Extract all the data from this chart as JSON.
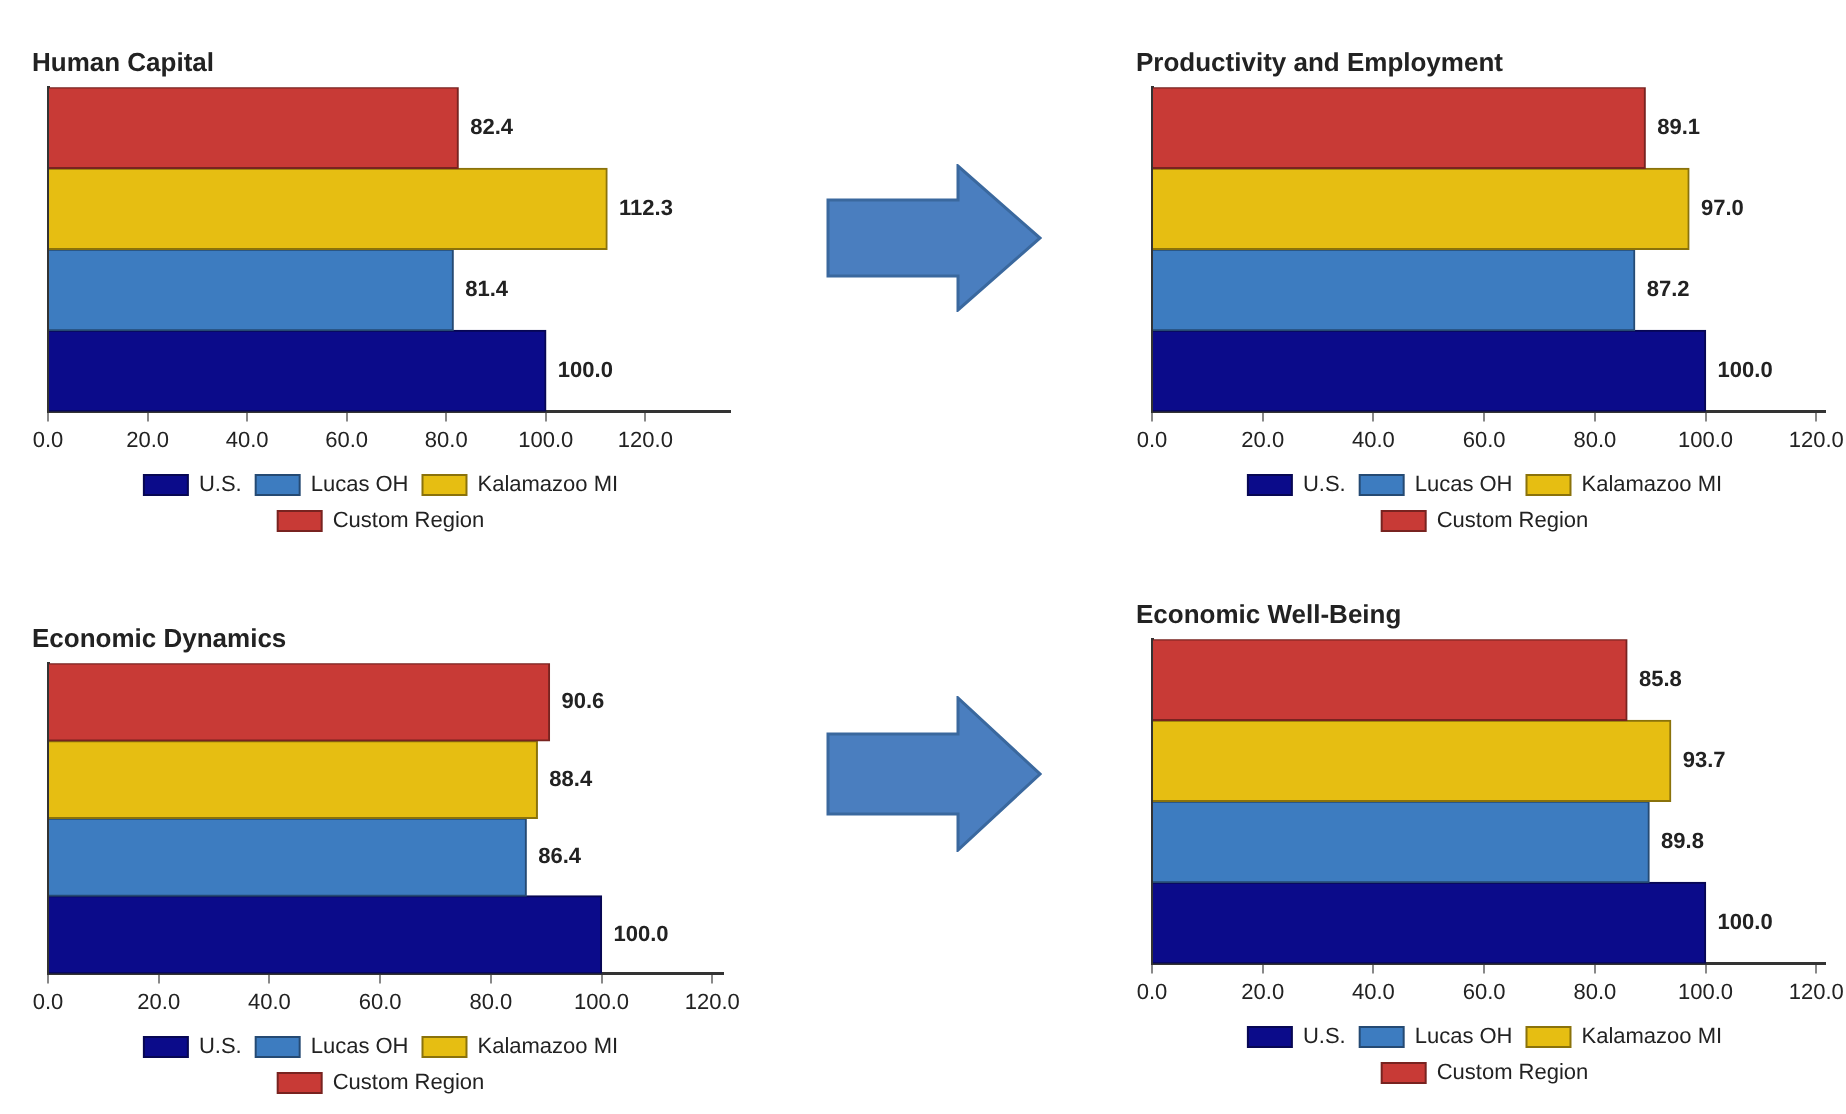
{
  "chart_data": [
    {
      "type": "bar",
      "orientation": "horizontal",
      "title": "Human Capital",
      "categories": [
        null
      ],
      "series": [
        {
          "name": "U.S.",
          "color": "#0b0b8a",
          "values": [
            100
          ],
          "value_labels": [
            "100.0"
          ]
        },
        {
          "name": "Lucas OH",
          "color": "#3d7cc0",
          "values": [
            81.4
          ],
          "value_labels": [
            "81.4"
          ]
        },
        {
          "name": "Kalamazoo MI",
          "color": "#e6be12",
          "values": [
            112.3
          ],
          "value_labels": [
            "112.3"
          ]
        },
        {
          "name": "Custom Region",
          "color": "#c83a36",
          "values": [
            82.4
          ],
          "value_labels": [
            "82.4"
          ]
        }
      ],
      "xlim": [
        0,
        137
      ],
      "xticks": [
        {
          "value": 0,
          "label": "0.0"
        },
        {
          "value": 20,
          "label": "20.0"
        },
        {
          "value": 40,
          "label": "40.0"
        },
        {
          "value": 60,
          "label": "60.0"
        },
        {
          "value": 80,
          "label": "80.0"
        },
        {
          "value": 100,
          "label": "100.0"
        },
        {
          "value": 120,
          "label": "120.0"
        }
      ],
      "legend": "bottom"
    },
    {
      "type": "bar",
      "orientation": "horizontal",
      "title": "Productivity and Employment",
      "categories": [
        null
      ],
      "series": [
        {
          "name": "U.S.",
          "color": "#0b0b8a",
          "values": [
            100
          ],
          "value_labels": [
            "100.0"
          ]
        },
        {
          "name": "Lucas OH",
          "color": "#3d7cc0",
          "values": [
            87.2
          ],
          "value_labels": [
            "87.2"
          ]
        },
        {
          "name": "Kalamazoo MI",
          "color": "#e6be12",
          "values": [
            97
          ],
          "value_labels": [
            "97.0"
          ]
        },
        {
          "name": "Custom Region",
          "color": "#c83a36",
          "values": [
            89.1
          ],
          "value_labels": [
            "89.1"
          ]
        }
      ],
      "xlim": [
        0,
        121.5
      ],
      "xticks": [
        {
          "value": 0,
          "label": "0.0"
        },
        {
          "value": 20,
          "label": "20.0"
        },
        {
          "value": 40,
          "label": "40.0"
        },
        {
          "value": 60,
          "label": "60.0"
        },
        {
          "value": 80,
          "label": "80.0"
        },
        {
          "value": 100,
          "label": "100.0"
        },
        {
          "value": 120,
          "label": "120.0"
        }
      ],
      "legend": "bottom"
    },
    {
      "type": "bar",
      "orientation": "horizontal",
      "title": "Economic Dynamics",
      "categories": [
        null
      ],
      "series": [
        {
          "name": "U.S.",
          "color": "#0b0b8a",
          "values": [
            100
          ],
          "value_labels": [
            "100.0"
          ]
        },
        {
          "name": "Lucas OH",
          "color": "#3d7cc0",
          "values": [
            86.4
          ],
          "value_labels": [
            "86.4"
          ]
        },
        {
          "name": "Kalamazoo MI",
          "color": "#e6be12",
          "values": [
            88.4
          ],
          "value_labels": [
            "88.4"
          ]
        },
        {
          "name": "Custom Region",
          "color": "#c83a36",
          "values": [
            90.6
          ],
          "value_labels": [
            "90.6"
          ]
        }
      ],
      "xlim": [
        0,
        122
      ],
      "xticks": [
        {
          "value": 0,
          "label": "0.0"
        },
        {
          "value": 20,
          "label": "20.0"
        },
        {
          "value": 40,
          "label": "40.0"
        },
        {
          "value": 60,
          "label": "60.0"
        },
        {
          "value": 80,
          "label": "80.0"
        },
        {
          "value": 100,
          "label": "100.0"
        },
        {
          "value": 120,
          "label": "120.0"
        }
      ],
      "legend": "bottom"
    },
    {
      "type": "bar",
      "orientation": "horizontal",
      "title": "Economic Well-Being",
      "categories": [
        null
      ],
      "series": [
        {
          "name": "U.S.",
          "color": "#0b0b8a",
          "values": [
            100
          ],
          "value_labels": [
            "100.0"
          ]
        },
        {
          "name": "Lucas OH",
          "color": "#3d7cc0",
          "values": [
            89.8
          ],
          "value_labels": [
            "89.8"
          ]
        },
        {
          "name": "Kalamazoo MI",
          "color": "#e6be12",
          "values": [
            93.7
          ],
          "value_labels": [
            "93.7"
          ]
        },
        {
          "name": "Custom Region",
          "color": "#c83a36",
          "values": [
            85.8
          ],
          "value_labels": [
            "85.8"
          ]
        }
      ],
      "xlim": [
        0,
        121.5
      ],
      "xticks": [
        {
          "value": 0,
          "label": "0.0"
        },
        {
          "value": 20,
          "label": "20.0"
        },
        {
          "value": 40,
          "label": "40.0"
        },
        {
          "value": 60,
          "label": "60.0"
        },
        {
          "value": 80,
          "label": "80.0"
        },
        {
          "value": 100,
          "label": "100.0"
        },
        {
          "value": 120,
          "label": "120.0"
        }
      ],
      "legend": "bottom"
    }
  ]
}
